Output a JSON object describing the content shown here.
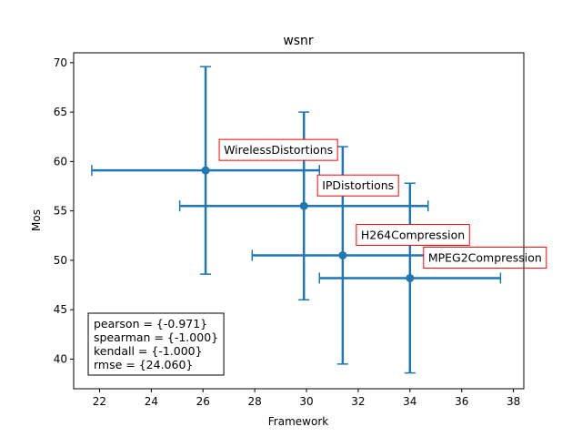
{
  "chart_data": {
    "type": "scatter",
    "title": "wsnr",
    "xlabel": "Framework",
    "ylabel": "Mos",
    "xlim": [
      21.0,
      38.4
    ],
    "ylim": [
      37.0,
      71.0
    ],
    "xticks": [
      22,
      24,
      26,
      28,
      30,
      32,
      34,
      36,
      38
    ],
    "yticks": [
      40,
      45,
      50,
      55,
      60,
      65,
      70
    ],
    "grid": false,
    "color": "#1f77b4",
    "label_box_color": "#ff0000",
    "points": [
      {
        "label": "WirelessDistortions",
        "x": 26.1,
        "y": 59.1,
        "xerr": 4.4,
        "yerr": 10.5
      },
      {
        "label": "IPDistortions",
        "x": 29.9,
        "y": 55.5,
        "xerr": 4.8,
        "yerr": 9.5
      },
      {
        "label": "H264Compression",
        "x": 31.4,
        "y": 50.5,
        "xerr": 3.5,
        "yerr": 11.0
      },
      {
        "label": "MPEG2Compression",
        "x": 34.0,
        "y": 48.2,
        "xerr": 3.5,
        "yerr": 9.6
      }
    ],
    "stats": [
      "pearson = {-0.971}",
      "spearman = {-1.000}",
      "kendall = {-1.000}",
      "rmse = {24.060}"
    ]
  }
}
